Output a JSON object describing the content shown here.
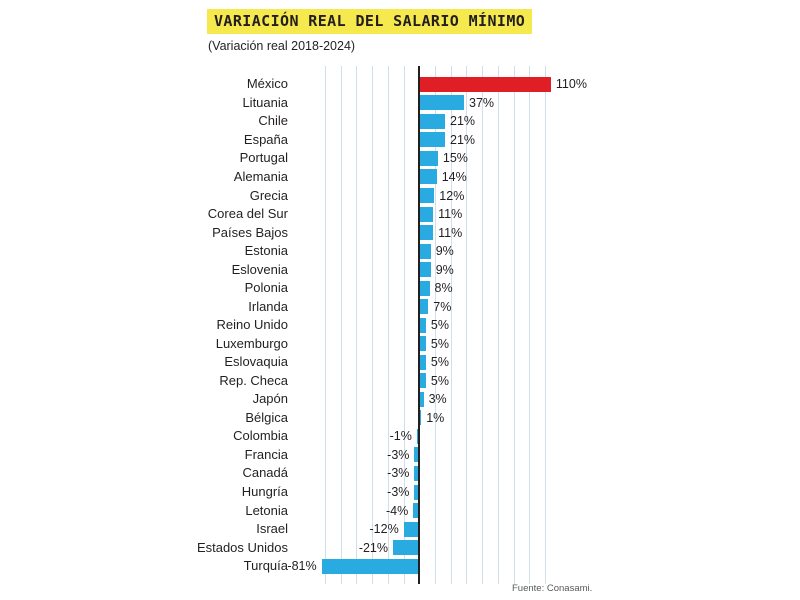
{
  "title": "VARIACIÓN REAL DEL SALARIO MÍNIMO",
  "subtitle": "(Variación real 2018-2024)",
  "source": "Fuente: Conasami.",
  "colors": {
    "highlight_bar": "#e01e25",
    "bar": "#29abe2",
    "title_background": "#f5e94e",
    "gridline": "#cfe0eb",
    "zero_axis": "#231f20",
    "text": "#231f20",
    "source_text": "#58595b"
  },
  "chart_data": {
    "type": "bar",
    "orientation": "horizontal",
    "title": "VARIACIÓN REAL DEL SALARIO MÍNIMO",
    "subtitle": "(Variación real 2018-2024)",
    "source": "Fuente: Conasami.",
    "xlabel": "",
    "ylabel": "",
    "xlim": [
      -81,
      110
    ],
    "grid": true,
    "legend": "none",
    "unit": "%",
    "highlighted_category": "México",
    "categories": [
      "México",
      "Lituania",
      "Chile",
      "España",
      "Portugal",
      "Alemania",
      "Grecia",
      "Corea del Sur",
      "Países Bajos",
      "Estonia",
      "Eslovenia",
      "Polonia",
      "Irlanda",
      "Reino Unido",
      "Luxemburgo",
      "Eslovaquia",
      "Rep. Checa",
      "Japón",
      "Bélgica",
      "Colombia",
      "Francia",
      "Canadá",
      "Hungría",
      "Letonia",
      "Israel",
      "Estados Unidos",
      "Turquía"
    ],
    "values": [
      110,
      37,
      21,
      21,
      15,
      14,
      12,
      11,
      11,
      9,
      9,
      8,
      7,
      5,
      5,
      5,
      5,
      3,
      1,
      -1,
      -3,
      -3,
      -3,
      -4,
      -12,
      -21,
      -81
    ],
    "value_labels": [
      "110%",
      "37%",
      "21%",
      "21%",
      "15%",
      "14%",
      "12%",
      "11%",
      "11%",
      "9%",
      "9%",
      "8%",
      "7%",
      "5%",
      "5%",
      "5%",
      "5%",
      "3%",
      "1%",
      "-1%",
      "-3%",
      "-3%",
      "-3%",
      "-4%",
      "-12%",
      "-21%",
      "-81%"
    ]
  }
}
